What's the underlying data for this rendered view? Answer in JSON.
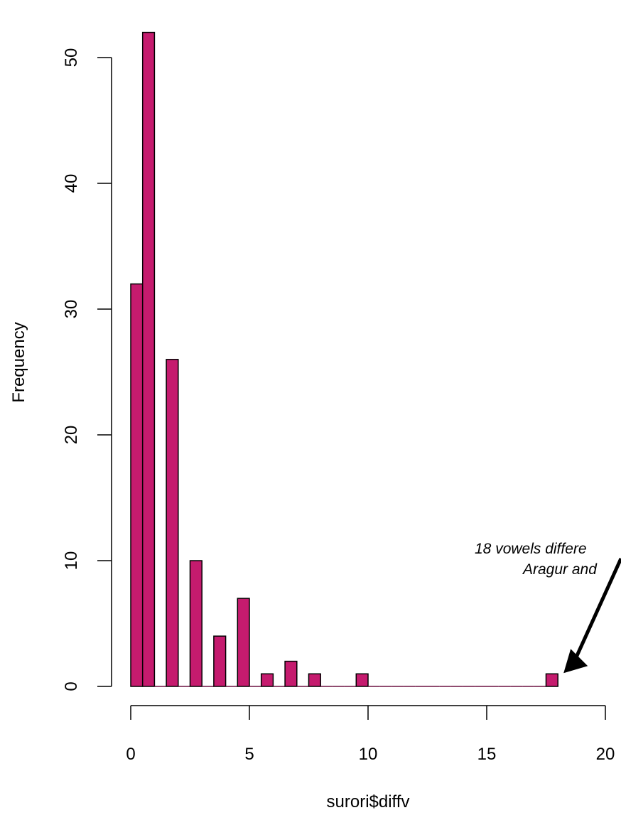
{
  "chart_data": {
    "type": "bar",
    "title": "",
    "xlabel": "surori$diffv",
    "ylabel": "Frequency",
    "bin_width": 0.5,
    "bins": [
      {
        "x": 0.0,
        "count": 32
      },
      {
        "x": 0.5,
        "count": 52
      },
      {
        "x": 1.0,
        "count": 0
      },
      {
        "x": 1.5,
        "count": 26
      },
      {
        "x": 2.0,
        "count": 0
      },
      {
        "x": 2.5,
        "count": 10
      },
      {
        "x": 3.0,
        "count": 0
      },
      {
        "x": 3.5,
        "count": 4
      },
      {
        "x": 4.0,
        "count": 0
      },
      {
        "x": 4.5,
        "count": 7
      },
      {
        "x": 5.0,
        "count": 0
      },
      {
        "x": 5.5,
        "count": 1
      },
      {
        "x": 6.0,
        "count": 0
      },
      {
        "x": 6.5,
        "count": 2
      },
      {
        "x": 7.0,
        "count": 0
      },
      {
        "x": 7.5,
        "count": 1
      },
      {
        "x": 8.0,
        "count": 0
      },
      {
        "x": 8.5,
        "count": 0
      },
      {
        "x": 9.0,
        "count": 0
      },
      {
        "x": 9.5,
        "count": 1
      },
      {
        "x": 10.0,
        "count": 0
      },
      {
        "x": 10.5,
        "count": 0
      },
      {
        "x": 11.0,
        "count": 0
      },
      {
        "x": 11.5,
        "count": 0
      },
      {
        "x": 12.0,
        "count": 0
      },
      {
        "x": 12.5,
        "count": 0
      },
      {
        "x": 13.0,
        "count": 0
      },
      {
        "x": 13.5,
        "count": 0
      },
      {
        "x": 14.0,
        "count": 0
      },
      {
        "x": 14.5,
        "count": 0
      },
      {
        "x": 15.0,
        "count": 0
      },
      {
        "x": 15.5,
        "count": 0
      },
      {
        "x": 16.0,
        "count": 0
      },
      {
        "x": 16.5,
        "count": 0
      },
      {
        "x": 17.0,
        "count": 0
      },
      {
        "x": 17.5,
        "count": 1
      }
    ],
    "xlim": [
      0,
      20
    ],
    "ylim": [
      0,
      52
    ],
    "x_ticks": [
      0,
      5,
      10,
      15,
      20
    ],
    "x_tick_labels": [
      "0",
      "5",
      "10",
      "15",
      "20"
    ],
    "y_ticks": [
      0,
      10,
      20,
      30,
      40,
      50
    ],
    "y_tick_labels": [
      "0",
      "10",
      "20",
      "30",
      "40",
      "50"
    ],
    "bar_color": "#c51b6e",
    "grid": false,
    "annotation": {
      "lines": [
        "18 vowels differe",
        "Aragur and"
      ],
      "color": "#6a9a2e",
      "arrow_to": {
        "x": 18,
        "count": 1
      }
    }
  }
}
